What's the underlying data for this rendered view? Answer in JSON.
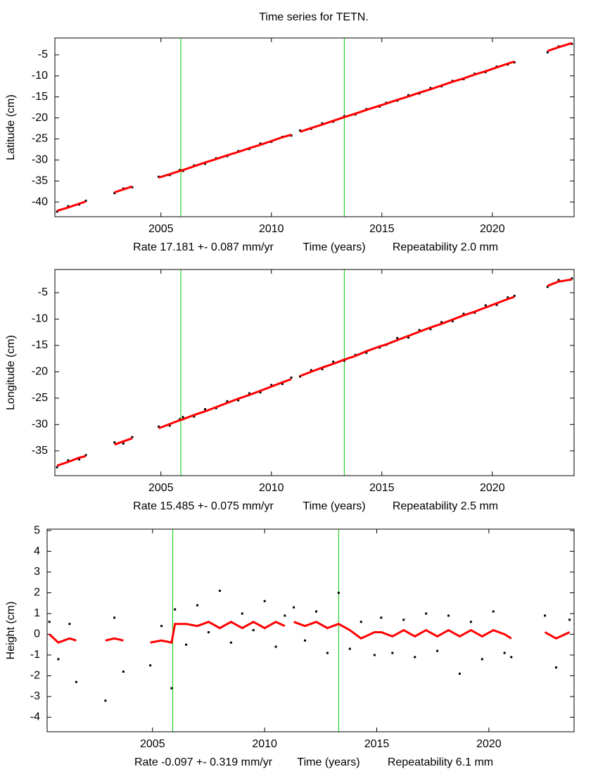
{
  "title": "Time series for TETN.",
  "chart_data": [
    {
      "type": "scatter",
      "y_label": "Latitude (cm)",
      "rate_label": "Rate 17.181 +- 0.087 mm/yr",
      "x_label": "Time (years)",
      "repeatability_label": "Repeatability 2.0 mm",
      "xlim": [
        2000.2,
        2023.7
      ],
      "xticks": [
        2005,
        2010,
        2015,
        2020
      ],
      "ylim": [
        -43.5,
        -1
      ],
      "yticks": [
        -40,
        -35,
        -30,
        -25,
        -20,
        -15,
        -10,
        -5
      ],
      "vlines": [
        2005.9,
        2013.3
      ],
      "vline_color": "#00cc00",
      "x": [
        2000.3,
        2000.8,
        2001.3,
        2001.6,
        2002.2,
        2002.9,
        2003.3,
        2003.7,
        2004.3,
        2004.9,
        2005.4,
        2005.85,
        2006.0,
        2006.5,
        2007.0,
        2007.5,
        2008.0,
        2008.5,
        2009.0,
        2009.5,
        2010.0,
        2010.5,
        2010.9,
        2011.1,
        2011.3,
        2011.8,
        2012.3,
        2012.8,
        2013.3,
        2013.8,
        2014.3,
        2014.9,
        2015.2,
        2015.7,
        2016.2,
        2016.7,
        2017.2,
        2017.7,
        2018.2,
        2018.7,
        2019.2,
        2019.7,
        2020.2,
        2020.7,
        2021.0,
        2021.8,
        2022.5,
        2023.0,
        2023.6
      ],
      "series": [
        {
          "type": "scatter",
          "color": "#000000",
          "values": [
            -42.3,
            -41.0,
            -40.6,
            -39.7,
            null,
            -37.9,
            -36.8,
            -36.5,
            null,
            -34.0,
            -33.6,
            -32.4,
            -32.6,
            -31.3,
            -30.9,
            -29.6,
            -29.1,
            -27.9,
            -27.4,
            -26.1,
            -25.7,
            -24.5,
            -24.2,
            null,
            -23.0,
            -22.6,
            -21.3,
            -20.9,
            -19.6,
            -19.2,
            -17.9,
            -17.3,
            -16.4,
            -15.9,
            -14.6,
            -14.2,
            -12.9,
            -12.5,
            -11.2,
            -10.8,
            -9.5,
            -9.1,
            -7.8,
            -7.3,
            -6.8,
            null,
            -4.4,
            -3.0,
            -2.4
          ]
        },
        {
          "type": "line",
          "color": "#ff0000",
          "values": [
            -42.1,
            -41.3,
            -40.4,
            -39.9,
            null,
            -37.7,
            -37.0,
            -36.3,
            null,
            -34.2,
            -33.4,
            -32.6,
            -32.4,
            -31.5,
            -30.6,
            -29.8,
            -28.9,
            -28.1,
            -27.2,
            -26.4,
            -25.5,
            -24.6,
            -24.0,
            null,
            -23.3,
            -22.4,
            -21.6,
            -20.7,
            -19.8,
            -19.0,
            -18.1,
            -17.1,
            -16.6,
            -15.7,
            -14.9,
            -14.0,
            -13.2,
            -12.3,
            -11.4,
            -10.6,
            -9.7,
            -8.9,
            -8.0,
            -7.1,
            -6.6,
            null,
            -4.1,
            -3.2,
            -2.2
          ]
        }
      ]
    },
    {
      "type": "scatter",
      "y_label": "Longitude (cm)",
      "rate_label": "Rate 15.485 +- 0.075 mm/yr",
      "x_label": "Time (years)",
      "repeatability_label": "Repeatability 2.5 mm",
      "xlim": [
        2000.2,
        2023.7
      ],
      "xticks": [
        2005,
        2010,
        2015,
        2020
      ],
      "ylim": [
        -39.7,
        -0.6
      ],
      "yticks": [
        -35,
        -30,
        -25,
        -20,
        -15,
        -10,
        -5
      ],
      "vlines": [
        2005.9,
        2013.3
      ],
      "vline_color": "#00cc00",
      "x": [
        2000.3,
        2000.8,
        2001.3,
        2001.6,
        2002.2,
        2002.9,
        2003.3,
        2003.7,
        2004.3,
        2004.9,
        2005.4,
        2005.85,
        2006.0,
        2006.5,
        2007.0,
        2007.5,
        2008.0,
        2008.5,
        2009.0,
        2009.5,
        2010.0,
        2010.5,
        2010.9,
        2011.1,
        2011.3,
        2011.8,
        2012.3,
        2012.8,
        2013.3,
        2013.8,
        2014.3,
        2014.9,
        2015.2,
        2015.7,
        2016.2,
        2016.7,
        2017.2,
        2017.7,
        2018.2,
        2018.7,
        2019.2,
        2019.7,
        2020.2,
        2020.7,
        2021.0,
        2021.8,
        2022.5,
        2023.0,
        2023.6
      ],
      "series": [
        {
          "type": "scatter",
          "color": "#000000",
          "values": [
            -38.1,
            -36.8,
            -36.6,
            -35.8,
            null,
            -33.4,
            -33.6,
            -32.4,
            null,
            -30.4,
            -30.2,
            -29.0,
            -28.6,
            -28.5,
            -27.1,
            -26.9,
            -25.6,
            -25.4,
            -24.1,
            -23.9,
            -22.5,
            -22.3,
            -21.1,
            null,
            -20.9,
            -19.7,
            -19.5,
            -18.1,
            -17.9,
            -16.8,
            -16.4,
            -15.4,
            -14.9,
            -13.6,
            -13.5,
            -12.1,
            -11.9,
            -10.6,
            -10.4,
            -9.0,
            -8.8,
            -7.4,
            -7.3,
            -5.9,
            -5.6,
            null,
            -3.9,
            -2.6,
            -2.3
          ]
        },
        {
          "type": "line",
          "color": "#ff0000",
          "values": [
            -37.8,
            -37.1,
            -36.3,
            -36.0,
            null,
            -33.8,
            -33.2,
            -32.6,
            null,
            -30.7,
            -29.9,
            -29.2,
            -29.0,
            -28.2,
            -27.5,
            -26.7,
            -25.9,
            -25.1,
            -24.4,
            -23.6,
            -22.8,
            -22.0,
            -21.4,
            null,
            -20.8,
            -20.0,
            -19.2,
            -18.5,
            -17.7,
            -17.0,
            -16.1,
            -15.2,
            -14.8,
            -14.0,
            -13.2,
            -12.4,
            -11.6,
            -10.9,
            -10.1,
            -9.3,
            -8.6,
            -7.8,
            -7.0,
            -6.2,
            -5.8,
            null,
            -3.7,
            -2.9,
            -2.5
          ]
        }
      ]
    },
    {
      "type": "scatter",
      "y_label": "Height (cm)",
      "rate_label": "Rate -0.097 +- 0.319 mm/yr",
      "x_label": "Time (years)",
      "repeatability_label": "Repeatability 6.1 mm",
      "xlim": [
        2000.3,
        2023.8
      ],
      "xticks": [
        2005,
        2010,
        2015,
        2020
      ],
      "ylim": [
        -4.7,
        5.07
      ],
      "yticks": [
        -4,
        -3,
        -2,
        -1,
        0,
        1,
        2,
        3,
        4,
        5
      ],
      "vlines": [
        2005.9,
        2013.3
      ],
      "vline_color": "#00cc00",
      "x": [
        2000.4,
        2000.8,
        2001.3,
        2001.6,
        2002.2,
        2002.9,
        2003.3,
        2003.7,
        2004.3,
        2004.9,
        2005.4,
        2005.85,
        2006.0,
        2006.5,
        2007.0,
        2007.5,
        2008.0,
        2008.5,
        2009.0,
        2009.5,
        2010.0,
        2010.5,
        2010.9,
        2011.1,
        2011.3,
        2011.8,
        2012.3,
        2012.8,
        2013.3,
        2013.8,
        2014.3,
        2014.9,
        2015.2,
        2015.7,
        2016.2,
        2016.7,
        2017.2,
        2017.7,
        2018.2,
        2018.7,
        2019.2,
        2019.7,
        2020.2,
        2020.7,
        2021.0,
        2021.8,
        2022.5,
        2023.0,
        2023.6
      ],
      "series": [
        {
          "type": "scatter",
          "color": "#000000",
          "values": [
            0.6,
            -1.2,
            0.5,
            -2.3,
            null,
            -3.2,
            0.8,
            -1.8,
            null,
            -1.5,
            0.4,
            -2.6,
            1.2,
            -0.5,
            1.4,
            0.1,
            2.1,
            -0.4,
            1.0,
            0.2,
            1.6,
            -0.6,
            0.9,
            null,
            1.3,
            -0.3,
            1.1,
            -0.9,
            2.0,
            -0.7,
            0.6,
            -1.0,
            0.8,
            -0.9,
            0.7,
            -1.1,
            1.0,
            -0.8,
            0.9,
            -1.9,
            0.6,
            -1.2,
            1.1,
            -0.9,
            -1.1,
            null,
            0.9,
            -1.6,
            0.7
          ]
        },
        {
          "type": "line",
          "color": "#ff0000",
          "values": [
            0.0,
            -0.4,
            -0.2,
            -0.3,
            null,
            -0.3,
            -0.2,
            -0.3,
            null,
            -0.4,
            -0.3,
            -0.4,
            0.5,
            0.5,
            0.4,
            0.6,
            0.3,
            0.6,
            0.3,
            0.6,
            0.3,
            0.6,
            0.4,
            null,
            0.6,
            0.4,
            0.6,
            0.3,
            0.5,
            0.2,
            -0.2,
            0.1,
            0.1,
            -0.1,
            0.2,
            -0.1,
            0.2,
            -0.1,
            0.2,
            -0.1,
            0.2,
            -0.1,
            0.2,
            0.0,
            -0.2,
            null,
            0.1,
            -0.2,
            0.1
          ]
        }
      ]
    }
  ]
}
